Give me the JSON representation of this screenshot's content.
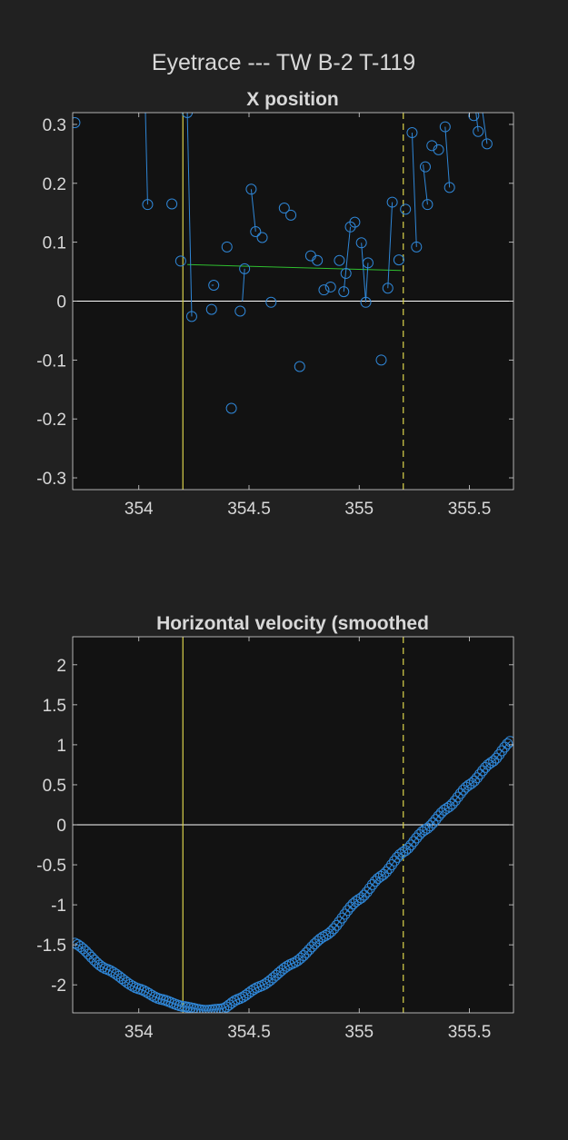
{
  "figure_title": "Eyetrace --- TW B-2 T-119",
  "colors": {
    "background": "#212121",
    "axes_background": "#121212",
    "text": "#d8d8d8",
    "data": "#2f86d6",
    "fit_line": "#2fbf2f",
    "event_line": "#d9d24a",
    "zero_line": "#ffffff"
  },
  "chart_data": [
    {
      "type": "scatter",
      "title": "X position",
      "xlabel": "",
      "ylabel": "",
      "xlim": [
        353.7,
        355.7
      ],
      "ylim": [
        -0.32,
        0.32
      ],
      "xticks": [
        354,
        354.5,
        355,
        355.5
      ],
      "xtick_labels": [
        "354",
        "354.5",
        "355",
        "355.5"
      ],
      "yticks": [
        -0.3,
        -0.2,
        -0.1,
        0,
        0.1,
        0.2,
        0.3
      ],
      "ytick_labels": [
        "-0.3",
        "-0.2",
        "-0.1",
        "0",
        "0.1",
        "0.2",
        "0.3"
      ],
      "grid": false,
      "points": [
        {
          "x": 353.71,
          "y": 0.303
        },
        {
          "x": 354.04,
          "y": 0.164
        },
        {
          "x": 354.15,
          "y": 0.165
        },
        {
          "x": 354.19,
          "y": 0.068
        },
        {
          "x": 354.22,
          "y": 0.32
        },
        {
          "x": 354.24,
          "y": -0.026
        },
        {
          "x": 354.33,
          "y": -0.014
        },
        {
          "x": 354.34,
          "y": 0.027
        },
        {
          "x": 354.4,
          "y": 0.092
        },
        {
          "x": 354.42,
          "y": -0.182
        },
        {
          "x": 354.46,
          "y": -0.017
        },
        {
          "x": 354.48,
          "y": 0.055
        },
        {
          "x": 354.51,
          "y": 0.19
        },
        {
          "x": 354.53,
          "y": 0.118
        },
        {
          "x": 354.56,
          "y": 0.108
        },
        {
          "x": 354.6,
          "y": -0.002
        },
        {
          "x": 354.66,
          "y": 0.158
        },
        {
          "x": 354.69,
          "y": 0.146
        },
        {
          "x": 354.73,
          "y": -0.111
        },
        {
          "x": 354.78,
          "y": 0.077
        },
        {
          "x": 354.81,
          "y": 0.069
        },
        {
          "x": 354.84,
          "y": 0.019
        },
        {
          "x": 354.87,
          "y": 0.024
        },
        {
          "x": 354.91,
          "y": 0.069
        },
        {
          "x": 354.93,
          "y": 0.016
        },
        {
          "x": 354.94,
          "y": 0.047
        },
        {
          "x": 354.96,
          "y": 0.126
        },
        {
          "x": 354.98,
          "y": 0.134
        },
        {
          "x": 355.01,
          "y": 0.099
        },
        {
          "x": 355.03,
          "y": -0.002
        },
        {
          "x": 355.04,
          "y": 0.065
        },
        {
          "x": 355.1,
          "y": -0.1
        },
        {
          "x": 355.13,
          "y": 0.022
        },
        {
          "x": 355.15,
          "y": 0.168
        },
        {
          "x": 355.18,
          "y": 0.07
        },
        {
          "x": 355.21,
          "y": 0.156
        },
        {
          "x": 355.24,
          "y": 0.286
        },
        {
          "x": 355.26,
          "y": 0.092
        },
        {
          "x": 355.3,
          "y": 0.228
        },
        {
          "x": 355.31,
          "y": 0.164
        },
        {
          "x": 355.33,
          "y": 0.264
        },
        {
          "x": 355.36,
          "y": 0.257
        },
        {
          "x": 355.39,
          "y": 0.296
        },
        {
          "x": 355.41,
          "y": 0.193
        },
        {
          "x": 355.52,
          "y": 0.315
        },
        {
          "x": 355.54,
          "y": 0.288
        },
        {
          "x": 355.58,
          "y": 0.267
        }
      ],
      "segments": [
        [
          [
            354.03,
            0.32
          ],
          [
            354.04,
            0.164
          ]
        ],
        [
          [
            354.22,
            0.32
          ],
          [
            354.24,
            -0.026
          ]
        ],
        [
          [
            354.33,
            0.027
          ],
          [
            354.34,
            0.027
          ]
        ],
        [
          [
            354.47,
            0.0
          ],
          [
            354.48,
            0.055
          ]
        ],
        [
          [
            354.51,
            0.19
          ],
          [
            354.53,
            0.118
          ]
        ],
        [
          [
            354.93,
            0.016
          ],
          [
            354.96,
            0.126
          ]
        ],
        [
          [
            355.01,
            0.099
          ],
          [
            355.03,
            -0.002
          ]
        ],
        [
          [
            355.03,
            0.002
          ],
          [
            355.04,
            0.065
          ]
        ],
        [
          [
            355.13,
            0.022
          ],
          [
            355.15,
            0.168
          ]
        ],
        [
          [
            355.24,
            0.286
          ],
          [
            355.26,
            0.092
          ]
        ],
        [
          [
            355.29,
            0.232
          ],
          [
            355.31,
            0.164
          ]
        ],
        [
          [
            355.39,
            0.296
          ],
          [
            355.41,
            0.193
          ]
        ],
        [
          [
            355.53,
            0.32
          ],
          [
            355.54,
            0.288
          ]
        ],
        [
          [
            355.56,
            0.32
          ],
          [
            355.58,
            0.267
          ]
        ]
      ],
      "fit_line": [
        [
          354.22,
          0.062
        ],
        [
          355.19,
          0.052
        ]
      ],
      "event_solid_x": 354.2,
      "event_dashed_x": 355.2,
      "zero_line": 0
    },
    {
      "type": "line",
      "title": "Horizontal velocity (smoothed",
      "xlabel": "",
      "ylabel": "",
      "xlim": [
        353.7,
        355.7
      ],
      "ylim": [
        -2.35,
        2.35
      ],
      "xticks": [
        354,
        354.5,
        355,
        355.5
      ],
      "xtick_labels": [
        "354",
        "354.5",
        "355",
        "355.5"
      ],
      "yticks": [
        -2,
        -1.5,
        -1,
        -0.5,
        0,
        0.5,
        1,
        1.5,
        2
      ],
      "ytick_labels": [
        "-2",
        "-1.5",
        "-1",
        "-0.5",
        "0",
        "0.5",
        "1",
        "1.5",
        "2"
      ],
      "grid": false,
      "series": [
        {
          "marker": "circle",
          "x_start": 353.71,
          "x_end": 355.69,
          "x_step": 0.0125,
          "keypoints": [
            [
              353.71,
              -1.48
            ],
            [
              353.85,
              -1.8
            ],
            [
              354.0,
              -2.05
            ],
            [
              354.1,
              -2.18
            ],
            [
              354.2,
              -2.27
            ],
            [
              354.3,
              -2.32
            ],
            [
              354.38,
              -2.3
            ],
            [
              354.45,
              -2.18
            ],
            [
              354.55,
              -2.02
            ],
            [
              354.7,
              -1.73
            ],
            [
              354.85,
              -1.38
            ],
            [
              355.0,
              -0.93
            ],
            [
              355.1,
              -0.64
            ],
            [
              355.2,
              -0.34
            ],
            [
              355.3,
              -0.06
            ],
            [
              355.4,
              0.21
            ],
            [
              355.5,
              0.5
            ],
            [
              355.6,
              0.78
            ],
            [
              355.69,
              1.05
            ]
          ]
        }
      ],
      "event_solid_x": 354.2,
      "event_dashed_x": 355.2,
      "zero_line": 0
    }
  ]
}
